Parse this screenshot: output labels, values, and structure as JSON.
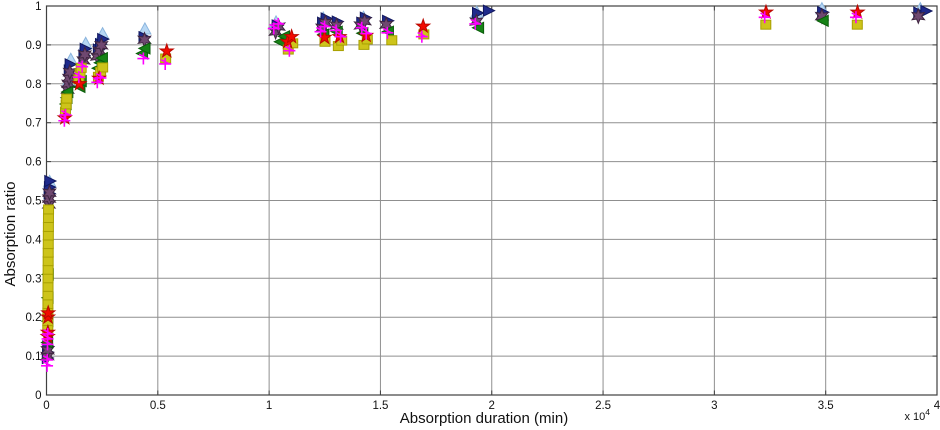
{
  "figure": {
    "x_multiplier": "x 10",
    "x_multiplier_exp": "4"
  },
  "chart_data": {
    "type": "scatter",
    "title": "",
    "xlabel": "Absorption duration (min)",
    "ylabel": "Absorption ratio",
    "xlim": [
      0,
      40000
    ],
    "ylim": [
      0,
      1
    ],
    "grid": true,
    "legend_position": "none",
    "x_ticks": {
      "values": [
        0,
        5000,
        10000,
        15000,
        20000,
        25000,
        30000,
        35000,
        40000
      ],
      "labels": [
        "0",
        "0.5",
        "1",
        "1.5",
        "2",
        "2.5",
        "3",
        "3.5",
        "4"
      ]
    },
    "y_ticks": {
      "values": [
        0,
        0.1,
        0.2,
        0.3,
        0.4,
        0.5,
        0.6,
        0.7,
        0.8,
        0.9,
        1
      ],
      "labels": [
        "0",
        "0.1",
        "0.2",
        "0.3",
        "0.4",
        "0.5",
        "0.6",
        "0.7",
        "0.8",
        "0.9",
        "1"
      ]
    },
    "series": [
      {
        "name": "light-blue-up-triangle",
        "marker": "triangle-up",
        "color": "#b7d7f4",
        "edge": "#8ab4dd",
        "points": [
          [
            140,
            0.548
          ],
          [
            1000,
            0.808
          ],
          [
            1090,
            0.862
          ],
          [
            1760,
            0.903
          ],
          [
            2520,
            0.928
          ],
          [
            4420,
            0.94
          ],
          [
            10310,
            0.958
          ],
          [
            12430,
            0.968
          ],
          [
            14240,
            0.97
          ],
          [
            19330,
            0.983
          ],
          [
            34830,
            0.992
          ],
          [
            39250,
            0.992
          ]
        ]
      },
      {
        "name": "navy-right-triangle",
        "marker": "triangle-right",
        "color": "#1f2a8c",
        "edge": "#10175e",
        "points": [
          [
            35,
            0.095
          ],
          [
            46,
            0.11
          ],
          [
            57,
            0.125
          ],
          [
            118,
            0.518
          ],
          [
            132,
            0.534
          ],
          [
            146,
            0.55
          ],
          [
            1022,
            0.834
          ],
          [
            1062,
            0.85
          ],
          [
            1682,
            0.873
          ],
          [
            1736,
            0.89
          ],
          [
            2330,
            0.888
          ],
          [
            2425,
            0.902
          ],
          [
            2522,
            0.915
          ],
          [
            4380,
            0.92
          ],
          [
            10360,
            0.95
          ],
          [
            12400,
            0.957
          ],
          [
            12560,
            0.968
          ],
          [
            13060,
            0.96
          ],
          [
            14160,
            0.957
          ],
          [
            14320,
            0.97
          ],
          [
            15320,
            0.962
          ],
          [
            19360,
            0.982
          ],
          [
            19850,
            0.988
          ],
          [
            34860,
            0.984
          ],
          [
            39180,
            0.983
          ],
          [
            39500,
            0.987
          ]
        ]
      },
      {
        "name": "purple-hexagram",
        "marker": "hexagram",
        "color": "#6f4870",
        "edge": "#3f2640",
        "points": [
          [
            40,
            0.1
          ],
          [
            52,
            0.115
          ],
          [
            108,
            0.49
          ],
          [
            120,
            0.505
          ],
          [
            133,
            0.52
          ],
          [
            948,
            0.785
          ],
          [
            982,
            0.8
          ],
          [
            1015,
            0.815
          ],
          [
            1048,
            0.83
          ],
          [
            1664,
            0.86
          ],
          [
            1724,
            0.875
          ],
          [
            2272,
            0.87
          ],
          [
            2372,
            0.885
          ],
          [
            2465,
            0.899
          ],
          [
            4400,
            0.913
          ],
          [
            10290,
            0.934
          ],
          [
            10430,
            0.947
          ],
          [
            12390,
            0.944
          ],
          [
            12530,
            0.957
          ],
          [
            13030,
            0.95
          ],
          [
            14110,
            0.95
          ],
          [
            14290,
            0.961
          ],
          [
            15260,
            0.952
          ],
          [
            19310,
            0.96
          ],
          [
            34830,
            0.974
          ],
          [
            39160,
            0.974
          ]
        ]
      },
      {
        "name": "green-left-triangle",
        "marker": "triangle-left",
        "color": "#168216",
        "edge": "#0a5c0a",
        "points": [
          [
            52,
            0.135
          ],
          [
            62,
            0.19
          ],
          [
            72,
            0.25
          ],
          [
            82,
            0.31
          ],
          [
            882,
            0.748
          ],
          [
            922,
            0.764
          ],
          [
            958,
            0.779
          ],
          [
            1502,
            0.792
          ],
          [
            1562,
            0.807
          ],
          [
            2325,
            0.84
          ],
          [
            2422,
            0.854
          ],
          [
            2512,
            0.866
          ],
          [
            4315,
            0.878
          ],
          [
            4425,
            0.891
          ],
          [
            10510,
            0.908
          ],
          [
            10690,
            0.922
          ],
          [
            12460,
            0.927
          ],
          [
            13060,
            0.934
          ],
          [
            14210,
            0.93
          ],
          [
            15360,
            0.934
          ],
          [
            19410,
            0.944
          ],
          [
            34890,
            0.962
          ]
        ]
      },
      {
        "name": "yellow-square",
        "marker": "square",
        "color": "#cdc41a",
        "edge": "#a8a000",
        "points": [
          [
            58,
            0.168
          ],
          [
            60,
            0.19
          ],
          [
            62,
            0.212
          ],
          [
            64,
            0.234
          ],
          [
            66,
            0.256
          ],
          [
            68,
            0.278
          ],
          [
            70,
            0.3
          ],
          [
            72,
            0.322
          ],
          [
            74,
            0.344
          ],
          [
            76,
            0.366
          ],
          [
            79,
            0.388
          ],
          [
            82,
            0.41
          ],
          [
            85,
            0.432
          ],
          [
            88,
            0.455
          ],
          [
            92,
            0.477
          ],
          [
            852,
            0.728
          ],
          [
            882,
            0.747
          ],
          [
            908,
            0.762
          ],
          [
            1452,
            0.812
          ],
          [
            1507,
            0.827
          ],
          [
            1558,
            0.841
          ],
          [
            2332,
            0.818
          ],
          [
            2432,
            0.831
          ],
          [
            2522,
            0.842
          ],
          [
            5352,
            0.865
          ],
          [
            10860,
            0.888
          ],
          [
            11060,
            0.904
          ],
          [
            12510,
            0.908
          ],
          [
            13110,
            0.897
          ],
          [
            13260,
            0.911
          ],
          [
            14260,
            0.9
          ],
          [
            14410,
            0.914
          ],
          [
            15510,
            0.912
          ],
          [
            16950,
            0.927
          ],
          [
            32310,
            0.952
          ],
          [
            36420,
            0.952
          ]
        ]
      },
      {
        "name": "red-pentagram",
        "marker": "pentagram",
        "color": "#f20b00",
        "edge": "#b80800",
        "points": [
          [
            56,
            0.15
          ],
          [
            63,
            0.161
          ],
          [
            70,
            0.2
          ],
          [
            77,
            0.211
          ],
          [
            822,
            0.712
          ],
          [
            1482,
            0.8
          ],
          [
            2362,
            0.814
          ],
          [
            5402,
            0.884
          ],
          [
            10830,
            0.908
          ],
          [
            11010,
            0.921
          ],
          [
            12490,
            0.919
          ],
          [
            13160,
            0.921
          ],
          [
            14360,
            0.924
          ],
          [
            16920,
            0.948
          ],
          [
            32320,
            0.984
          ],
          [
            36430,
            0.984
          ]
        ]
      },
      {
        "name": "magenta-asterisk",
        "marker": "asterisk",
        "color": "#ff00ff",
        "edge": "#ff00ff",
        "points": [
          [
            25,
            0.075
          ],
          [
            33,
            0.09
          ],
          [
            43,
            0.13
          ],
          [
            49,
            0.144
          ],
          [
            55,
            0.157
          ],
          [
            802,
            0.705
          ],
          [
            852,
            0.72
          ],
          [
            1452,
            0.817
          ],
          [
            1602,
            0.844
          ],
          [
            2282,
            0.804
          ],
          [
            2422,
            0.815
          ],
          [
            4352,
            0.865
          ],
          [
            5332,
            0.851
          ],
          [
            10210,
            0.942
          ],
          [
            10410,
            0.954
          ],
          [
            10910,
            0.885
          ],
          [
            12310,
            0.934
          ],
          [
            12490,
            0.947
          ],
          [
            13010,
            0.937
          ],
          [
            13210,
            0.921
          ],
          [
            14160,
            0.944
          ],
          [
            14360,
            0.929
          ],
          [
            15310,
            0.931
          ],
          [
            16860,
            0.921
          ],
          [
            19260,
            0.954
          ],
          [
            32260,
            0.971
          ],
          [
            36360,
            0.971
          ]
        ]
      }
    ]
  }
}
